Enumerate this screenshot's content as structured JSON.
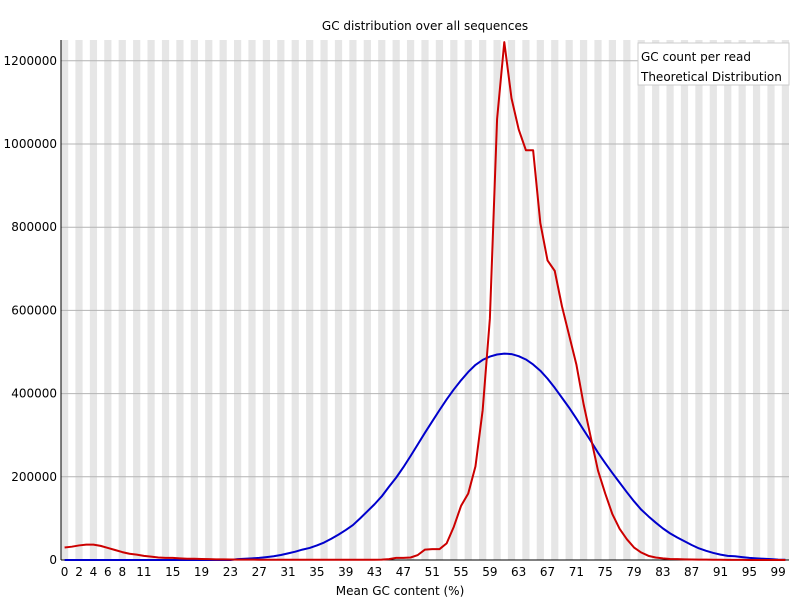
{
  "chart_data": {
    "type": "line",
    "title": "GC distribution over all sequences",
    "xlabel": "Mean GC content (%)",
    "ylabel": "",
    "xlim": [
      0,
      100
    ],
    "ylim": [
      0,
      1250000
    ],
    "x_tick_labels": [
      "0",
      "2",
      "4",
      "6",
      "8",
      "11",
      "15",
      "19",
      "23",
      "27",
      "31",
      "35",
      "39",
      "43",
      "47",
      "51",
      "55",
      "59",
      "63",
      "67",
      "71",
      "75",
      "79",
      "83",
      "87",
      "91",
      "95",
      "99"
    ],
    "y_ticks": [
      0,
      200000,
      400000,
      600000,
      800000,
      1000000,
      1200000
    ],
    "y_tick_labels": [
      "0",
      "200000",
      "400000",
      "600000",
      "800000",
      "1000000",
      "1200000"
    ],
    "grid": true,
    "legend_position": "top-right",
    "x": [
      0,
      1,
      2,
      3,
      4,
      5,
      6,
      7,
      8,
      9,
      10,
      11,
      12,
      13,
      14,
      15,
      16,
      17,
      18,
      19,
      20,
      21,
      22,
      23,
      24,
      25,
      26,
      27,
      28,
      29,
      30,
      31,
      32,
      33,
      34,
      35,
      36,
      37,
      38,
      39,
      40,
      41,
      42,
      43,
      44,
      45,
      46,
      47,
      48,
      49,
      50,
      51,
      52,
      53,
      54,
      55,
      56,
      57,
      58,
      59,
      60,
      61,
      62,
      63,
      64,
      65,
      66,
      67,
      68,
      69,
      70,
      71,
      72,
      73,
      74,
      75,
      76,
      77,
      78,
      79,
      80,
      81,
      82,
      83,
      84,
      85,
      86,
      87,
      88,
      89,
      90,
      91,
      92,
      93,
      94,
      95,
      96,
      97,
      98,
      99,
      100
    ],
    "series": [
      {
        "name": "GC count per read",
        "color": "#cc0000",
        "values": [
          30000,
          32000,
          35000,
          37000,
          37000,
          34000,
          29000,
          24000,
          19000,
          15000,
          13000,
          10000,
          8000,
          6000,
          5000,
          5000,
          4000,
          3000,
          3000,
          2500,
          2000,
          1500,
          1500,
          1200,
          1000,
          1000,
          800,
          700,
          600,
          500,
          500,
          500,
          500,
          500,
          500,
          500,
          500,
          500,
          500,
          500,
          500,
          500,
          600,
          700,
          1000,
          2000,
          5000,
          5000,
          6000,
          12000,
          25000,
          26000,
          26000,
          40000,
          80000,
          130000,
          160000,
          225000,
          360000,
          580000,
          1060000,
          1245000,
          1110000,
          1035000,
          985000,
          985000,
          810000,
          720000,
          695000,
          610000,
          540000,
          470000,
          375000,
          295000,
          215000,
          160000,
          110000,
          75000,
          50000,
          30000,
          18000,
          10000,
          6000,
          4000,
          2500,
          2000,
          1500,
          1200,
          1000,
          800,
          600,
          500,
          400,
          300,
          200,
          150,
          100,
          50,
          30,
          20,
          10
        ]
      },
      {
        "name": "Theoretical Distribution",
        "color": "#0000cc",
        "values": [
          0,
          0,
          0,
          0,
          0,
          0,
          0,
          0,
          0,
          0,
          0,
          0,
          0,
          0,
          0,
          0,
          0,
          0,
          0,
          0,
          0,
          0,
          0,
          0,
          2000,
          3000,
          4000,
          5000,
          7000,
          9000,
          12000,
          16000,
          20000,
          25000,
          29000,
          35000,
          42000,
          51000,
          61000,
          72000,
          84000,
          100000,
          117000,
          134000,
          153000,
          176000,
          198000,
          223000,
          250000,
          278000,
          306000,
          333000,
          360000,
          386000,
          410000,
          432000,
          452000,
          469000,
          481000,
          489000,
          494000,
          496000,
          495000,
          490000,
          482000,
          470000,
          455000,
          436000,
          414000,
          390000,
          366000,
          340000,
          313000,
          286000,
          258000,
          233000,
          209000,
          186000,
          163000,
          141000,
          121000,
          105000,
          90000,
          76000,
          64000,
          54000,
          45000,
          36000,
          28000,
          22000,
          17000,
          13000,
          10000,
          9000,
          7000,
          5000,
          4000,
          3000,
          2000,
          1000,
          500
        ]
      }
    ]
  }
}
